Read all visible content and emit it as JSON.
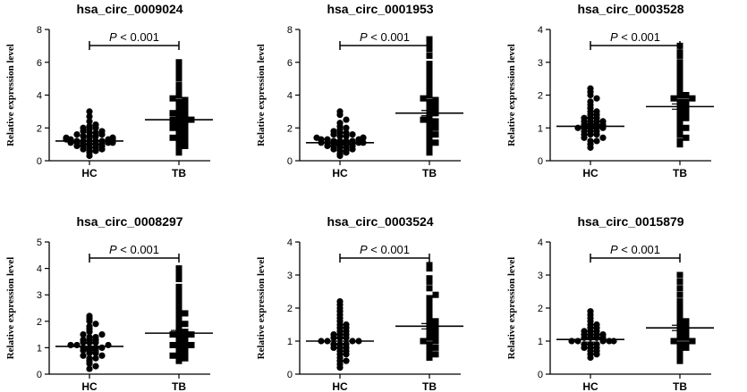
{
  "chart_data": [
    {
      "type": "scatter",
      "title": "hsa_circ_0009024",
      "ylabel": "Relative expression level",
      "categories": [
        "HC",
        "TB"
      ],
      "ylim": [
        0,
        8
      ],
      "yticks": [
        0,
        2,
        4,
        6,
        8
      ],
      "significance": {
        "p_italic": "P",
        "p_rest": " < 0.001"
      },
      "series": [
        {
          "name": "HC",
          "marker": "circle",
          "mean": 1.2,
          "values": [
            0.3,
            0.5,
            0.6,
            0.6,
            0.7,
            0.7,
            0.8,
            0.8,
            0.9,
            0.9,
            0.9,
            1.0,
            1.0,
            1.0,
            1.0,
            1.1,
            1.1,
            1.1,
            1.1,
            1.2,
            1.2,
            1.2,
            1.2,
            1.2,
            1.3,
            1.3,
            1.3,
            1.3,
            1.4,
            1.4,
            1.4,
            1.5,
            1.5,
            1.5,
            1.6,
            1.6,
            1.7,
            1.7,
            1.8,
            1.8,
            1.9,
            2.0,
            2.0,
            2.1,
            2.2,
            2.4,
            2.7,
            3.0
          ]
        },
        {
          "name": "TB",
          "marker": "square",
          "mean": 2.5,
          "values": [
            0.5,
            0.7,
            0.8,
            0.9,
            1.0,
            1.1,
            1.2,
            1.3,
            1.4,
            1.5,
            1.6,
            1.7,
            1.8,
            1.9,
            2.0,
            2.0,
            2.1,
            2.2,
            2.2,
            2.3,
            2.4,
            2.5,
            2.5,
            2.6,
            2.7,
            2.8,
            2.8,
            2.9,
            3.0,
            3.1,
            3.2,
            3.3,
            3.4,
            3.5,
            3.6,
            3.7,
            3.8,
            4.0,
            4.2,
            4.4,
            4.6,
            5.0,
            5.2,
            5.5,
            5.8,
            6.0
          ]
        }
      ]
    },
    {
      "type": "scatter",
      "title": "hsa_circ_0001953",
      "ylabel": "Relative expression level",
      "categories": [
        "HC",
        "TB"
      ],
      "ylim": [
        0,
        8
      ],
      "yticks": [
        0,
        2,
        4,
        6,
        8
      ],
      "significance": {
        "p_italic": "P",
        "p_rest": " < 0.001"
      },
      "series": [
        {
          "name": "HC",
          "marker": "circle",
          "mean": 1.1,
          "values": [
            0.3,
            0.4,
            0.5,
            0.6,
            0.6,
            0.7,
            0.7,
            0.8,
            0.8,
            0.9,
            0.9,
            0.9,
            1.0,
            1.0,
            1.0,
            1.0,
            1.1,
            1.1,
            1.1,
            1.1,
            1.2,
            1.2,
            1.2,
            1.2,
            1.3,
            1.3,
            1.3,
            1.4,
            1.4,
            1.4,
            1.5,
            1.5,
            1.6,
            1.6,
            1.7,
            1.7,
            1.8,
            1.9,
            2.0,
            2.1,
            2.3,
            2.5,
            2.8,
            3.0
          ]
        },
        {
          "name": "TB",
          "marker": "square",
          "mean": 2.9,
          "values": [
            0.5,
            0.6,
            0.8,
            1.0,
            1.1,
            1.3,
            1.5,
            1.6,
            1.8,
            1.9,
            2.0,
            2.1,
            2.2,
            2.3,
            2.4,
            2.5,
            2.6,
            2.8,
            2.9,
            3.0,
            3.1,
            3.2,
            3.3,
            3.4,
            3.5,
            3.6,
            3.7,
            3.8,
            4.0,
            4.2,
            4.4,
            4.6,
            4.8,
            5.0,
            5.3,
            5.6,
            5.9,
            6.4,
            6.8,
            7.0,
            7.2,
            7.4
          ]
        }
      ]
    },
    {
      "type": "scatter",
      "title": "hsa_circ_0003528",
      "ylabel": "Relative expression level",
      "categories": [
        "HC",
        "TB"
      ],
      "ylim": [
        0,
        4
      ],
      "yticks": [
        0,
        1,
        2,
        3,
        4
      ],
      "significance": {
        "p_italic": "P",
        "p_rest": " < 0.001"
      },
      "series": [
        {
          "name": "HC",
          "marker": "circle",
          "mean": 1.05,
          "values": [
            0.4,
            0.5,
            0.6,
            0.6,
            0.7,
            0.7,
            0.8,
            0.8,
            0.8,
            0.9,
            0.9,
            0.9,
            1.0,
            1.0,
            1.0,
            1.0,
            1.0,
            1.1,
            1.1,
            1.1,
            1.1,
            1.2,
            1.2,
            1.2,
            1.2,
            1.3,
            1.3,
            1.3,
            1.4,
            1.4,
            1.5,
            1.5,
            1.6,
            1.7,
            1.8,
            1.9,
            2.0,
            2.1,
            2.2
          ]
        },
        {
          "name": "TB",
          "marker": "square",
          "mean": 1.65,
          "values": [
            0.5,
            0.6,
            0.7,
            0.8,
            0.9,
            1.0,
            1.0,
            1.1,
            1.2,
            1.3,
            1.3,
            1.4,
            1.4,
            1.5,
            1.5,
            1.6,
            1.6,
            1.7,
            1.7,
            1.8,
            1.8,
            1.9,
            1.9,
            2.0,
            2.0,
            2.1,
            2.2,
            2.3,
            2.4,
            2.5,
            2.6,
            2.7,
            2.8,
            2.9,
            3.0,
            3.2,
            3.3,
            3.5
          ]
        }
      ]
    },
    {
      "type": "scatter",
      "title": "hsa_circ_0008297",
      "ylabel": "Relative expression level",
      "categories": [
        "HC",
        "TB"
      ],
      "ylim": [
        0,
        5
      ],
      "yticks": [
        0,
        1,
        2,
        3,
        4,
        5
      ],
      "significance": {
        "p_italic": "P",
        "p_rest": " < 0.001"
      },
      "series": [
        {
          "name": "HC",
          "marker": "circle",
          "mean": 1.05,
          "values": [
            0.2,
            0.3,
            0.4,
            0.5,
            0.6,
            0.6,
            0.7,
            0.7,
            0.8,
            0.8,
            0.9,
            0.9,
            0.9,
            1.0,
            1.0,
            1.0,
            1.0,
            1.1,
            1.1,
            1.1,
            1.2,
            1.2,
            1.2,
            1.3,
            1.3,
            1.3,
            1.4,
            1.4,
            1.5,
            1.5,
            1.6,
            1.7,
            1.8,
            1.9,
            2.0,
            2.1,
            2.2
          ]
        },
        {
          "name": "TB",
          "marker": "square",
          "mean": 1.55,
          "values": [
            0.5,
            0.6,
            0.6,
            0.7,
            0.8,
            0.8,
            0.9,
            1.0,
            1.0,
            1.1,
            1.1,
            1.2,
            1.2,
            1.3,
            1.3,
            1.4,
            1.4,
            1.5,
            1.5,
            1.6,
            1.6,
            1.7,
            1.8,
            1.9,
            2.0,
            2.1,
            2.2,
            2.3,
            2.4,
            2.5,
            2.7,
            2.9,
            3.1,
            3.3,
            3.6,
            3.8,
            4.0
          ]
        }
      ]
    },
    {
      "type": "scatter",
      "title": "hsa_circ_0003524",
      "ylabel": "Relative expression level",
      "categories": [
        "HC",
        "TB"
      ],
      "ylim": [
        0,
        4
      ],
      "yticks": [
        0,
        1,
        2,
        3,
        4
      ],
      "significance": {
        "p_italic": "P",
        "p_rest": " < 0.001"
      },
      "series": [
        {
          "name": "HC",
          "marker": "circle",
          "mean": 1.0,
          "values": [
            0.2,
            0.3,
            0.4,
            0.4,
            0.5,
            0.6,
            0.6,
            0.7,
            0.7,
            0.8,
            0.8,
            0.8,
            0.9,
            0.9,
            0.9,
            1.0,
            1.0,
            1.0,
            1.0,
            1.1,
            1.1,
            1.1,
            1.2,
            1.2,
            1.2,
            1.3,
            1.3,
            1.4,
            1.4,
            1.5,
            1.5,
            1.6,
            1.7,
            1.8,
            1.9,
            2.0,
            2.1,
            2.2
          ]
        },
        {
          "name": "TB",
          "marker": "square",
          "mean": 1.45,
          "values": [
            0.5,
            0.6,
            0.6,
            0.7,
            0.8,
            0.8,
            0.9,
            1.0,
            1.0,
            1.1,
            1.1,
            1.2,
            1.2,
            1.3,
            1.3,
            1.4,
            1.4,
            1.5,
            1.5,
            1.6,
            1.6,
            1.7,
            1.8,
            1.9,
            2.0,
            2.1,
            2.2,
            2.3,
            2.4,
            2.6,
            2.8,
            2.9,
            3.2,
            3.3
          ]
        }
      ]
    },
    {
      "type": "scatter",
      "title": "hsa_circ_0015879",
      "ylabel": "Relative expression level",
      "categories": [
        "HC",
        "TB"
      ],
      "ylim": [
        0,
        4
      ],
      "yticks": [
        0,
        1,
        2,
        3,
        4
      ],
      "significance": {
        "p_italic": "P",
        "p_rest": " < 0.001"
      },
      "series": [
        {
          "name": "HC",
          "marker": "circle",
          "mean": 1.05,
          "values": [
            0.5,
            0.6,
            0.6,
            0.7,
            0.7,
            0.8,
            0.8,
            0.8,
            0.9,
            0.9,
            0.9,
            1.0,
            1.0,
            1.0,
            1.0,
            1.0,
            1.1,
            1.1,
            1.1,
            1.1,
            1.2,
            1.2,
            1.2,
            1.2,
            1.3,
            1.3,
            1.3,
            1.4,
            1.4,
            1.5,
            1.5,
            1.6,
            1.7,
            1.8,
            1.9
          ]
        },
        {
          "name": "TB",
          "marker": "square",
          "mean": 1.4,
          "values": [
            0.4,
            0.5,
            0.6,
            0.7,
            0.8,
            0.8,
            0.9,
            0.9,
            1.0,
            1.0,
            1.1,
            1.1,
            1.2,
            1.2,
            1.3,
            1.3,
            1.4,
            1.4,
            1.5,
            1.5,
            1.6,
            1.6,
            1.7,
            1.8,
            1.9,
            2.0,
            2.1,
            2.2,
            2.4,
            2.6,
            2.8,
            3.0
          ]
        }
      ]
    }
  ]
}
